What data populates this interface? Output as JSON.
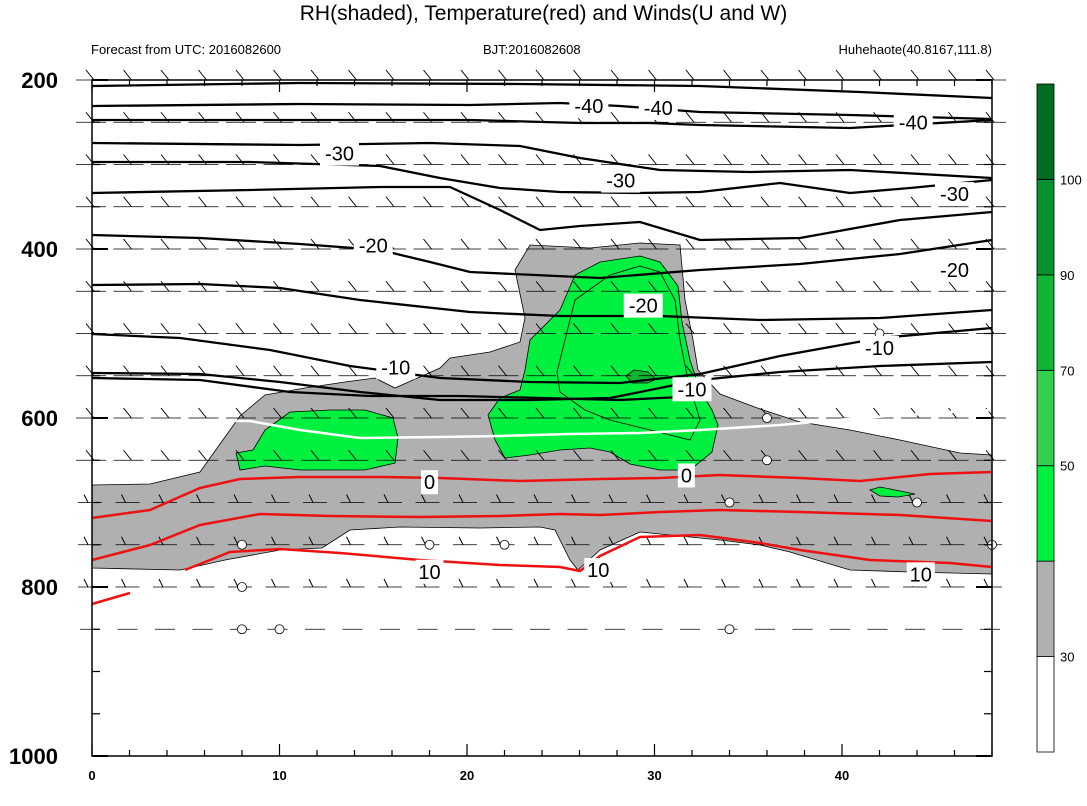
{
  "chart_data": {
    "type": "contour",
    "title": "RH(shaded), Temperature(red) and Winds(U and W)",
    "subtitles": {
      "left": "Forecast from UTC: 2016082600",
      "center": "BJT:2016082608",
      "right": "Huhehaote(40.8167,111.8)"
    },
    "x_ticks": [
      "0",
      "10",
      "20",
      "30",
      "40"
    ],
    "xlim": [
      0,
      48
    ],
    "y_ticks": [
      "200",
      "400",
      "600",
      "800",
      "1000"
    ],
    "ylim": [
      1000,
      200
    ],
    "colorbar": {
      "levels": [
        "30",
        "50",
        "70",
        "90",
        "100"
      ],
      "colors": [
        "#ffffff",
        "#b0b0b0",
        "#00f040",
        "#33d04f",
        "#0fb636",
        "#05912e",
        "#006c22"
      ]
    },
    "temperature_labels": [
      {
        "text": "-40",
        "x": 26.5,
        "p": 231
      },
      {
        "text": "-40",
        "x": 30.2,
        "p": 233
      },
      {
        "text": "-40",
        "x": 43.8,
        "p": 250
      },
      {
        "text": "-30",
        "x": 13.2,
        "p": 287
      },
      {
        "text": "-30",
        "x": 28.2,
        "p": 319
      },
      {
        "text": "-30",
        "x": 46.0,
        "p": 335
      },
      {
        "text": "-20",
        "x": 15.0,
        "p": 396
      },
      {
        "text": "-20",
        "x": 29.4,
        "p": 467
      },
      {
        "text": "-20",
        "x": 46.0,
        "p": 425
      },
      {
        "text": "-10",
        "x": 16.2,
        "p": 540
      },
      {
        "text": "-10",
        "x": 42.0,
        "p": 517
      },
      {
        "text": "-10",
        "x": 32.0,
        "p": 566
      },
      {
        "text": "0",
        "x": 18.0,
        "p": 676
      },
      {
        "text": "0",
        "x": 31.7,
        "p": 668
      },
      {
        "text": "10",
        "x": 18.0,
        "p": 782
      },
      {
        "text": "10",
        "x": 27.0,
        "p": 780
      },
      {
        "text": "10",
        "x": 44.2,
        "p": 785
      }
    ]
  }
}
